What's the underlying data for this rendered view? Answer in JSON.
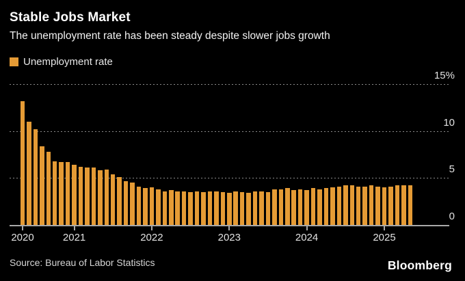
{
  "header": {
    "title": "Stable Jobs Market",
    "subtitle": "The unemployment rate has been steady despite slower jobs growth"
  },
  "legend": {
    "label": "Unemployment rate",
    "color": "#E59B35"
  },
  "chart_data": {
    "type": "bar",
    "title": "Stable Jobs Market",
    "subtitle": "The unemployment rate has been steady despite slower jobs growth",
    "series_name": "Unemployment rate",
    "unit": "%",
    "bar_color": "#E59B35",
    "background_color": "#000000",
    "grid": "horizontal-dotted",
    "legend_position": "top-left",
    "ylim": [
      0,
      15
    ],
    "yticks": [
      {
        "value": 15,
        "label": "15%"
      },
      {
        "value": 10,
        "label": "10"
      },
      {
        "value": 5,
        "label": "5"
      },
      {
        "value": 0,
        "label": "0"
      }
    ],
    "xticks": [
      {
        "index": 0,
        "label": "2020"
      },
      {
        "index": 8,
        "label": "2021"
      },
      {
        "index": 20,
        "label": "2022"
      },
      {
        "index": 32,
        "label": "2023"
      },
      {
        "index": 44,
        "label": "2024"
      },
      {
        "index": 56,
        "label": "2025"
      }
    ],
    "x": [
      "2020-05",
      "2020-06",
      "2020-07",
      "2020-08",
      "2020-09",
      "2020-10",
      "2020-11",
      "2020-12",
      "2021-01",
      "2021-02",
      "2021-03",
      "2021-04",
      "2021-05",
      "2021-06",
      "2021-07",
      "2021-08",
      "2021-09",
      "2021-10",
      "2021-11",
      "2021-12",
      "2022-01",
      "2022-02",
      "2022-03",
      "2022-04",
      "2022-05",
      "2022-06",
      "2022-07",
      "2022-08",
      "2022-09",
      "2022-10",
      "2022-11",
      "2022-12",
      "2023-01",
      "2023-02",
      "2023-03",
      "2023-04",
      "2023-05",
      "2023-06",
      "2023-07",
      "2023-08",
      "2023-09",
      "2023-10",
      "2023-11",
      "2023-12",
      "2024-01",
      "2024-02",
      "2024-03",
      "2024-04",
      "2024-05",
      "2024-06",
      "2024-07",
      "2024-08",
      "2024-09",
      "2024-10",
      "2024-11",
      "2024-12",
      "2025-01",
      "2025-02",
      "2025-03",
      "2025-04",
      "2025-05"
    ],
    "values": [
      13.2,
      11.0,
      10.2,
      8.4,
      7.8,
      6.8,
      6.7,
      6.7,
      6.4,
      6.2,
      6.1,
      6.1,
      5.8,
      5.9,
      5.4,
      5.1,
      4.7,
      4.5,
      4.1,
      3.9,
      4.0,
      3.8,
      3.6,
      3.7,
      3.6,
      3.6,
      3.5,
      3.6,
      3.5,
      3.6,
      3.6,
      3.5,
      3.4,
      3.6,
      3.5,
      3.4,
      3.6,
      3.6,
      3.5,
      3.8,
      3.8,
      3.9,
      3.7,
      3.8,
      3.7,
      3.9,
      3.8,
      3.9,
      4.0,
      4.1,
      4.2,
      4.2,
      4.1,
      4.1,
      4.2,
      4.1,
      4.0,
      4.1,
      4.2,
      4.2,
      4.2
    ]
  },
  "footer": {
    "source": "Source: Bureau of Labor Statistics",
    "brand": "Bloomberg"
  }
}
